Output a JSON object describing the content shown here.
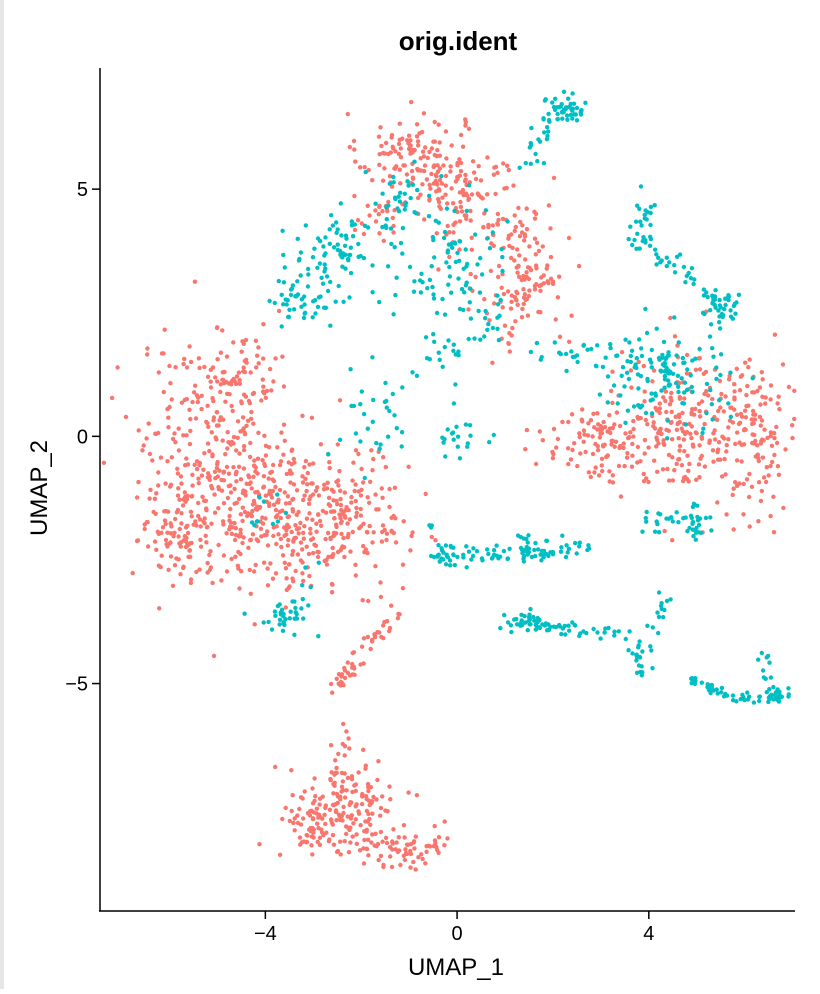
{
  "chart_data": {
    "type": "scatter",
    "title": "orig.ident",
    "xlabel": "UMAP_1",
    "ylabel": "UMAP_2",
    "xlim": [
      -7.45,
      7.05
    ],
    "ylim": [
      -9.6,
      7.45
    ],
    "x_ticks": [
      {
        "value": -4,
        "label": "−4"
      },
      {
        "value": 0,
        "label": "0"
      },
      {
        "value": 4,
        "label": "4"
      }
    ],
    "y_ticks": [
      {
        "value": 5,
        "label": "5"
      },
      {
        "value": 0,
        "label": "0"
      },
      {
        "value": -5,
        "label": "−5"
      }
    ],
    "grid": false,
    "legend": "none",
    "series": [
      {
        "color": "#F8766D",
        "clusters": [
          {
            "cx": -0.95,
            "cy": 5.7,
            "sx": 0.55,
            "sy": 0.42,
            "n": 120
          },
          {
            "cx": 0.25,
            "cy": 4.8,
            "sx": 0.55,
            "sy": 0.55,
            "n": 110
          },
          {
            "cx": 1.4,
            "cy": 3.2,
            "sx": 0.45,
            "sy": 0.75,
            "n": 130
          },
          {
            "cx": -1.7,
            "cy": 4.6,
            "sx": 0.3,
            "sy": 0.3,
            "n": 25
          },
          {
            "cx": -4.9,
            "cy": -0.5,
            "sx": 0.85,
            "sy": 1.2,
            "n": 370
          },
          {
            "cx": -3.5,
            "cy": -1.7,
            "sx": 0.75,
            "sy": 0.75,
            "n": 190
          },
          {
            "cx": -2.2,
            "cy": -1.7,
            "sx": 0.6,
            "sy": 0.6,
            "n": 150
          },
          {
            "cx": -5.9,
            "cy": -2.0,
            "sx": 0.35,
            "sy": 0.45,
            "n": 70
          },
          {
            "cx": -4.5,
            "cy": 1.3,
            "sx": 0.45,
            "sy": 0.4,
            "n": 40
          },
          {
            "cx": 4.7,
            "cy": 0.2,
            "sx": 0.75,
            "sy": 0.7,
            "n": 210
          },
          {
            "cx": 6.25,
            "cy": 0.0,
            "sx": 0.45,
            "sy": 0.75,
            "n": 130
          },
          {
            "cx": 2.9,
            "cy": -0.1,
            "sx": 0.55,
            "sy": 0.35,
            "n": 90
          },
          {
            "cx": -2.3,
            "cy": -7.4,
            "sx": 0.55,
            "sy": 0.45,
            "n": 120
          },
          {
            "cx": -3.0,
            "cy": -7.9,
            "sx": 0.35,
            "sy": 0.35,
            "n": 70
          },
          {
            "cx": -1.3,
            "cy": -8.4,
            "sx": 0.45,
            "sy": 0.25,
            "n": 60
          },
          {
            "cx": -2.4,
            "cy": -6.5,
            "sx": 0.15,
            "sy": 0.4,
            "n": 15
          }
        ],
        "segments": [
          {
            "x1": -2.6,
            "y1": -5.1,
            "x2": -1.3,
            "y2": -3.5,
            "n": 50,
            "spread": 0.12
          },
          {
            "x1": -0.9,
            "y1": -8.8,
            "x2": 0.0,
            "y2": -7.5,
            "n": 15,
            "spread": 0.1
          }
        ]
      },
      {
        "color": "#00BFC4",
        "clusters": [
          {
            "cx": -2.4,
            "cy": 3.8,
            "sx": 0.55,
            "sy": 0.45,
            "n": 80
          },
          {
            "cx": -3.2,
            "cy": 2.8,
            "sx": 0.35,
            "sy": 0.25,
            "n": 45
          },
          {
            "cx": 0.0,
            "cy": 3.6,
            "sx": 0.5,
            "sy": 0.7,
            "n": 75
          },
          {
            "cx": -1.2,
            "cy": 4.6,
            "sx": 0.35,
            "sy": 0.35,
            "n": 35
          },
          {
            "cx": 2.3,
            "cy": 6.6,
            "sx": 0.25,
            "sy": 0.18,
            "n": 45
          },
          {
            "cx": -1.8,
            "cy": 0.5,
            "sx": 0.35,
            "sy": 0.6,
            "n": 30
          },
          {
            "cx": 0.0,
            "cy": 0.0,
            "sx": 0.25,
            "sy": 0.35,
            "n": 20
          },
          {
            "cx": 3.9,
            "cy": 4.2,
            "sx": 0.15,
            "sy": 0.3,
            "n": 30
          },
          {
            "cx": 4.3,
            "cy": 1.2,
            "sx": 0.65,
            "sy": 0.5,
            "n": 120
          },
          {
            "cx": 5.5,
            "cy": 2.6,
            "sx": 0.25,
            "sy": 0.2,
            "n": 30
          },
          {
            "cx": 4.5,
            "cy": -1.7,
            "sx": 0.5,
            "sy": 0.15,
            "n": 35
          },
          {
            "cx": -3.6,
            "cy": -3.7,
            "sx": 0.3,
            "sy": 0.15,
            "n": 30
          },
          {
            "cx": 1.4,
            "cy": -3.8,
            "sx": 0.25,
            "sy": 0.12,
            "n": 25
          },
          {
            "cx": 6.7,
            "cy": -5.2,
            "sx": 0.15,
            "sy": 0.1,
            "n": 20
          },
          {
            "cx": -4.0,
            "cy": -1.6,
            "sx": 0.25,
            "sy": 0.2,
            "n": 10
          }
        ],
        "segments": [
          {
            "x1": -0.7,
            "y1": -2.5,
            "x2": 2.7,
            "y2": -2.2,
            "n": 90,
            "spread": 0.1
          },
          {
            "x1": 1.3,
            "y1": -3.8,
            "x2": 3.6,
            "y2": -4.0,
            "n": 45,
            "spread": 0.08
          },
          {
            "x1": 3.6,
            "y1": -4.0,
            "x2": 4.0,
            "y2": -5.0,
            "n": 20,
            "spread": 0.1
          },
          {
            "x1": 4.0,
            "y1": -4.2,
            "x2": 4.4,
            "y2": -3.2,
            "n": 15,
            "spread": 0.08
          },
          {
            "x1": 4.8,
            "y1": -4.9,
            "x2": 5.8,
            "y2": -5.3,
            "n": 30,
            "spread": 0.06
          },
          {
            "x1": 5.8,
            "y1": -5.3,
            "x2": 6.9,
            "y2": -5.3,
            "n": 20,
            "spread": 0.05
          },
          {
            "x1": 6.3,
            "y1": -4.3,
            "x2": 6.5,
            "y2": -5.1,
            "n": 10,
            "spread": 0.06
          },
          {
            "x1": 1.4,
            "y1": 5.4,
            "x2": 2.0,
            "y2": 6.4,
            "n": 20,
            "spread": 0.12
          },
          {
            "x1": 4.0,
            "y1": 3.8,
            "x2": 5.8,
            "y2": 2.5,
            "n": 35,
            "spread": 0.12
          },
          {
            "x1": -0.8,
            "y1": 1.3,
            "x2": 0.8,
            "y2": 2.3,
            "n": 30,
            "spread": 0.2
          },
          {
            "x1": 1.8,
            "y1": 1.6,
            "x2": 3.8,
            "y2": 1.6,
            "n": 35,
            "spread": 0.18
          },
          {
            "x1": -3.5,
            "y1": -3.8,
            "x2": -3.0,
            "y2": -2.5,
            "n": 10,
            "spread": 0.1
          },
          {
            "x1": 1.4,
            "y1": -1.7,
            "x2": 1.4,
            "y2": -2.8,
            "n": 10,
            "spread": 0.06
          },
          {
            "x1": -0.6,
            "y1": -1.8,
            "x2": -0.3,
            "y2": -2.5,
            "n": 8,
            "spread": 0.05
          },
          {
            "x1": 5.0,
            "y1": -1.4,
            "x2": 5.0,
            "y2": -2.1,
            "n": 8,
            "spread": 0.05
          }
        ]
      }
    ]
  }
}
